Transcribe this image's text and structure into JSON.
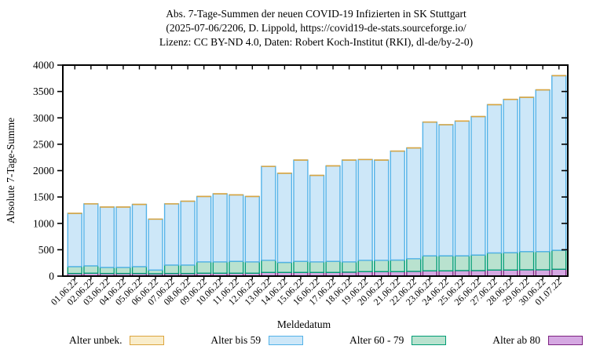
{
  "figure": {
    "title_line1": "Abs. 7-Tage-Summen der neuen COVID-19 Infizierten in SK Stuttgart",
    "title_line2": "(2025-07-06/2206, D. Lippold, https://covid19-de-stats.sourceforge.io/",
    "title_line3": "Lizenz: CC BY-ND 4.0, Daten: Robert Koch-Institut (RKI), dl-de/by-2-0)",
    "ylabel": "Absolute 7-Tage-Summe",
    "xlabel": "Meldedatum"
  },
  "legend": {
    "items": [
      {
        "label": "Alter unbek.",
        "fill": "#f9edcb",
        "stroke": "#dca53e"
      },
      {
        "label": "Alter bis 59",
        "fill": "#cde7f8",
        "stroke": "#53b2e8"
      },
      {
        "label": "Alter 60 - 79",
        "fill": "#b9e2cf",
        "stroke": "#009c74"
      },
      {
        "label": "Alter ab 80",
        "fill": "#d5a8e2",
        "stroke": "#7d2181"
      }
    ]
  },
  "chart_data": {
    "type": "bar",
    "stacked": true,
    "title": "Abs. 7-Tage-Summen der neuen COVID-19 Infizierten in SK Stuttgart (2025-07-06/2206, D. Lippold, https://covid19-de-stats.sourceforge.io/ Lizenz: CC BY-ND 4.0, Daten: Robert Koch-Institut (RKI), dl-de/by-2-0)",
    "xlabel": "Meldedatum",
    "ylabel": "Absolute 7-Tage-Summe",
    "ylim": [
      0,
      4000
    ],
    "yticks": [
      0,
      500,
      1000,
      1500,
      2000,
      2500,
      3000,
      3500,
      4000
    ],
    "grid": false,
    "legend_position": "bottom",
    "stack_order": "bottom-to-top",
    "categories": [
      "01.06.22",
      "02.06.22",
      "03.06.22",
      "04.06.22",
      "05.06.22",
      "06.06.22",
      "07.06.22",
      "08.06.22",
      "09.06.22",
      "10.06.22",
      "11.06.22",
      "12.06.22",
      "13.06.22",
      "14.06.22",
      "15.06.22",
      "16.06.22",
      "17.06.22",
      "18.06.22",
      "19.06.22",
      "20.06.22",
      "21.06.22",
      "22.06.22",
      "23.06.22",
      "24.06.22",
      "25.06.22",
      "26.06.22",
      "27.06.22",
      "28.06.22",
      "29.06.22",
      "30.06.22",
      "01.07.22"
    ],
    "series": [
      {
        "name": "Alter ab 80",
        "fill": "#d5a8e2",
        "stroke": "#7d2181",
        "values": [
          50,
          55,
          50,
          50,
          50,
          45,
          50,
          50,
          55,
          55,
          55,
          55,
          70,
          70,
          70,
          70,
          70,
          75,
          85,
          85,
          85,
          90,
          100,
          100,
          105,
          105,
          115,
          115,
          120,
          120,
          130
        ]
      },
      {
        "name": "Alter 60 - 79",
        "fill": "#b9e2cf",
        "stroke": "#009c74",
        "values": [
          130,
          140,
          115,
          115,
          130,
          70,
          160,
          160,
          215,
          215,
          225,
          215,
          230,
          190,
          210,
          200,
          210,
          195,
          215,
          215,
          220,
          240,
          285,
          285,
          280,
          295,
          325,
          330,
          345,
          345,
          360
        ]
      },
      {
        "name": "Alter bis 59",
        "fill": "#cde7f8",
        "stroke": "#53b2e8",
        "values": [
          1010,
          1175,
          1145,
          1145,
          1180,
          965,
          1160,
          1210,
          1240,
          1290,
          1260,
          1240,
          1780,
          1690,
          1920,
          1640,
          1810,
          1930,
          1910,
          1900,
          2065,
          2100,
          2535,
          2485,
          2555,
          2625,
          2810,
          2905,
          2925,
          3065,
          3310
        ]
      },
      {
        "name": "Alter unbek.",
        "fill": "#f9edcb",
        "stroke": "#dca53e",
        "values": [
          0,
          0,
          0,
          0,
          0,
          0,
          0,
          0,
          0,
          0,
          0,
          0,
          0,
          0,
          0,
          0,
          0,
          0,
          0,
          0,
          0,
          0,
          0,
          0,
          0,
          0,
          0,
          0,
          0,
          0,
          0
        ]
      }
    ],
    "totals": [
      1190,
      1370,
      1310,
      1310,
      1360,
      1080,
      1370,
      1420,
      1510,
      1560,
      1540,
      1510,
      2080,
      1950,
      2200,
      1910,
      2090,
      2200,
      2210,
      2200,
      2370,
      2430,
      2920,
      2870,
      2940,
      3030,
      3250,
      3350,
      3390,
      3530,
      3800
    ]
  }
}
